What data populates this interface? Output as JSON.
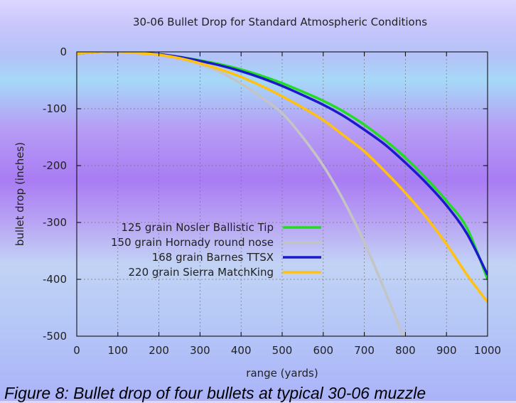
{
  "figure_caption": "Figure 8: Bullet drop of four bullets at typical 30-06 muzzle",
  "chart_data": {
    "type": "line",
    "title": "30-06 Bullet Drop for Standard Atmospheric Conditions",
    "xlabel": "range (yards)",
    "ylabel": "bullet drop (inches)",
    "xlim": [
      0,
      1000
    ],
    "ylim": [
      -500,
      0
    ],
    "xticks": [
      "0",
      "100",
      "200",
      "300",
      "400",
      "500",
      "600",
      "700",
      "800",
      "900",
      "1000"
    ],
    "yticks": [
      "0",
      "-100",
      "-200",
      "-300",
      "-400",
      "-500"
    ],
    "grid": true,
    "legend_position": "center-left",
    "x": [
      0,
      50,
      100,
      150,
      200,
      250,
      300,
      350,
      400,
      450,
      500,
      550,
      600,
      650,
      700,
      750,
      800,
      850,
      900,
      950,
      1000
    ],
    "series": [
      {
        "name": "125 grain Nosler Ballistic Tip",
        "color": "#22dd22",
        "values": [
          -3,
          0,
          0.5,
          -1,
          -4,
          -9,
          -15,
          -22,
          -31,
          -42,
          -55,
          -70,
          -86,
          -105,
          -128,
          -155,
          -186,
          -222,
          -262,
          -310,
          -400
        ]
      },
      {
        "name": "150 grain Hornady round nose",
        "color": "#c4c4c4",
        "values": [
          -3,
          0,
          0.5,
          -2,
          -6,
          -12,
          -22,
          -36,
          -56,
          -80,
          -108,
          -150,
          -200,
          -262,
          -335,
          -420,
          -510,
          null,
          null,
          null,
          null
        ]
      },
      {
        "name": "168 grain Barnes TTSX",
        "color": "#1a1acc",
        "values": [
          -3,
          0,
          0.5,
          -1,
          -4,
          -9,
          -16,
          -24,
          -34,
          -46,
          -60,
          -76,
          -93,
          -113,
          -137,
          -163,
          -195,
          -230,
          -270,
          -320,
          -392
        ]
      },
      {
        "name": "220 grain Sierra MatchKing",
        "color": "#ffc20e",
        "values": [
          -3,
          0,
          0.5,
          -2,
          -5,
          -11,
          -20,
          -31,
          -44,
          -60,
          -78,
          -98,
          -120,
          -147,
          -175,
          -210,
          -248,
          -290,
          -338,
          -392,
          -440
        ]
      }
    ]
  }
}
